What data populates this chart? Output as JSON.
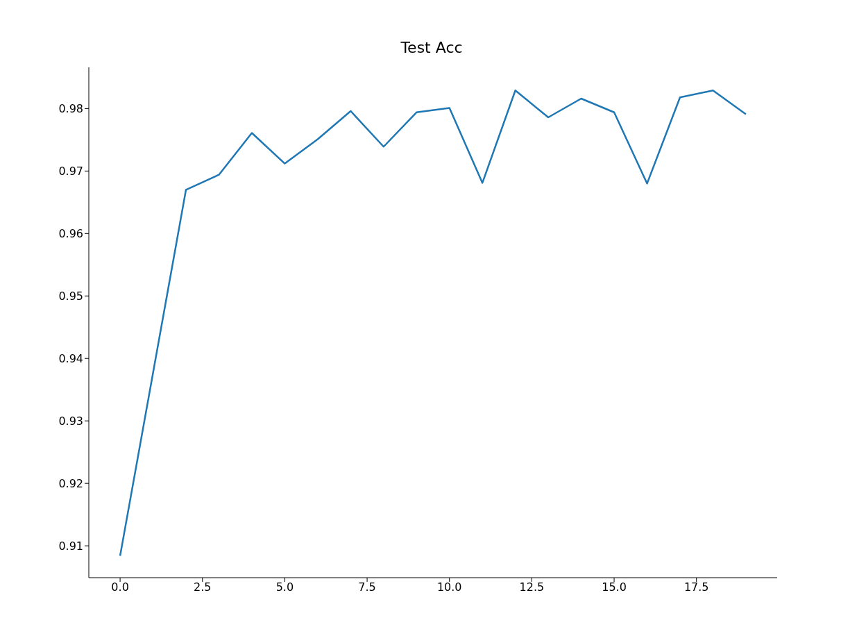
{
  "chart_data": {
    "type": "line",
    "title": "Test Acc",
    "x": [
      0,
      1,
      2,
      3,
      4,
      5,
      6,
      7,
      8,
      9,
      10,
      11,
      12,
      13,
      14,
      15,
      16,
      17,
      18,
      19
    ],
    "series": [
      {
        "color": "#1f77b4",
        "values": [
          0.9084,
          0.9377,
          0.967,
          0.9694,
          0.9761,
          0.9712,
          0.9751,
          0.9796,
          0.9739,
          0.9794,
          0.9801,
          0.9681,
          0.9829,
          0.9786,
          0.9816,
          0.9794,
          0.968,
          0.9818,
          0.9829,
          0.9791
        ]
      }
    ],
    "xlim": [
      -0.95,
      19.95
    ],
    "xticks": [
      {
        "value": 0,
        "label": "0.0"
      },
      {
        "value": 2.5,
        "label": "2.5"
      },
      {
        "value": 5,
        "label": "5.0"
      },
      {
        "value": 7.5,
        "label": "7.5"
      },
      {
        "value": 10,
        "label": "10.0"
      },
      {
        "value": 12.5,
        "label": "12.5"
      },
      {
        "value": 15,
        "label": "15.0"
      },
      {
        "value": 17.5,
        "label": "17.5"
      }
    ],
    "ylim": [
      0.9049,
      0.9866
    ],
    "yticks": [
      {
        "value": 0.91,
        "label": "0.91"
      },
      {
        "value": 0.92,
        "label": "0.92"
      },
      {
        "value": 0.93,
        "label": "0.93"
      },
      {
        "value": 0.94,
        "label": "0.94"
      },
      {
        "value": 0.95,
        "label": "0.95"
      },
      {
        "value": 0.96,
        "label": "0.96"
      },
      {
        "value": 0.97,
        "label": "0.97"
      },
      {
        "value": 0.98,
        "label": "0.98"
      }
    ],
    "grid": false,
    "legend": false,
    "marker": "none",
    "line_style": "solid"
  }
}
